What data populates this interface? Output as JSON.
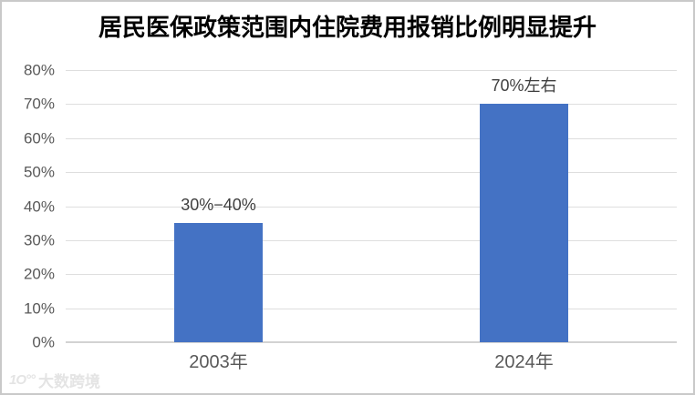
{
  "title": "居民医保政策范围内住院费用报销比例明显提升",
  "watermark": {
    "logo": "1O°°",
    "text": "大数跨境"
  },
  "chart_data": {
    "type": "bar",
    "title": "居民医保政策范围内住院费用报销比例明显提升",
    "categories": [
      "2003年",
      "2024年"
    ],
    "values": [
      35,
      70
    ],
    "data_labels": [
      "30%−40%",
      "70%左右"
    ],
    "unit": "percent",
    "ylim": [
      0,
      80
    ],
    "ytick_step": 10,
    "ytick_labels": [
      "0%",
      "10%",
      "20%",
      "30%",
      "40%",
      "50%",
      "60%",
      "70%",
      "80%"
    ],
    "bar_color": "#4472C4",
    "gridline_color": "#DEDEDE",
    "axis_label_color": "#595959",
    "grid": true,
    "legend": "none"
  }
}
